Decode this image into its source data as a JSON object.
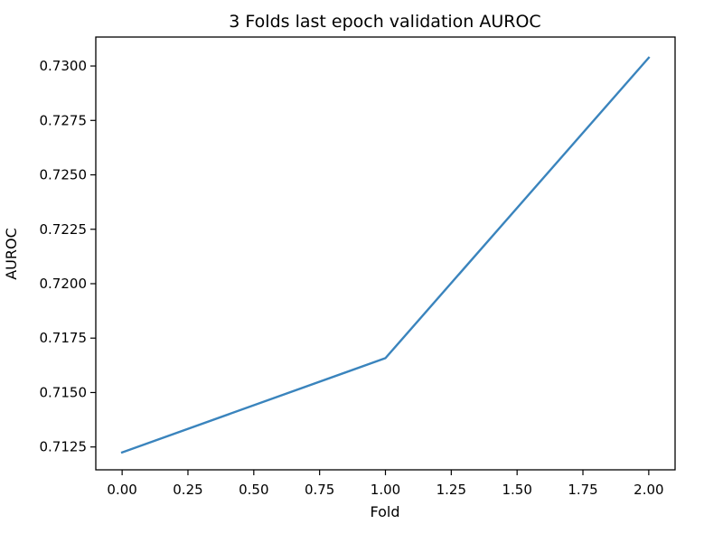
{
  "chart_data": {
    "type": "line",
    "title": "3 Folds last epoch validation AUROC",
    "xlabel": "Fold",
    "ylabel": "AUROC",
    "xlim": [
      -0.1,
      2.1
    ],
    "ylim": [
      0.71145,
      0.73133
    ],
    "x_ticks": [
      0.0,
      0.25,
      0.5,
      0.75,
      1.0,
      1.25,
      1.5,
      1.75,
      2.0
    ],
    "x_tick_labels": [
      "0.00",
      "0.25",
      "0.50",
      "0.75",
      "1.00",
      "1.25",
      "1.50",
      "1.75",
      "2.00"
    ],
    "y_ticks": [
      0.7125,
      0.715,
      0.7175,
      0.72,
      0.7225,
      0.725,
      0.7275,
      0.73
    ],
    "y_tick_labels": [
      "0.7125",
      "0.7150",
      "0.7175",
      "0.7200",
      "0.7225",
      "0.7250",
      "0.7275",
      "0.7300"
    ],
    "grid": false,
    "legend": false,
    "series": [
      {
        "color": "#3a84bd",
        "x": [
          0,
          1,
          2
        ],
        "y": [
          0.71225,
          0.71658,
          0.73038
        ]
      }
    ]
  }
}
